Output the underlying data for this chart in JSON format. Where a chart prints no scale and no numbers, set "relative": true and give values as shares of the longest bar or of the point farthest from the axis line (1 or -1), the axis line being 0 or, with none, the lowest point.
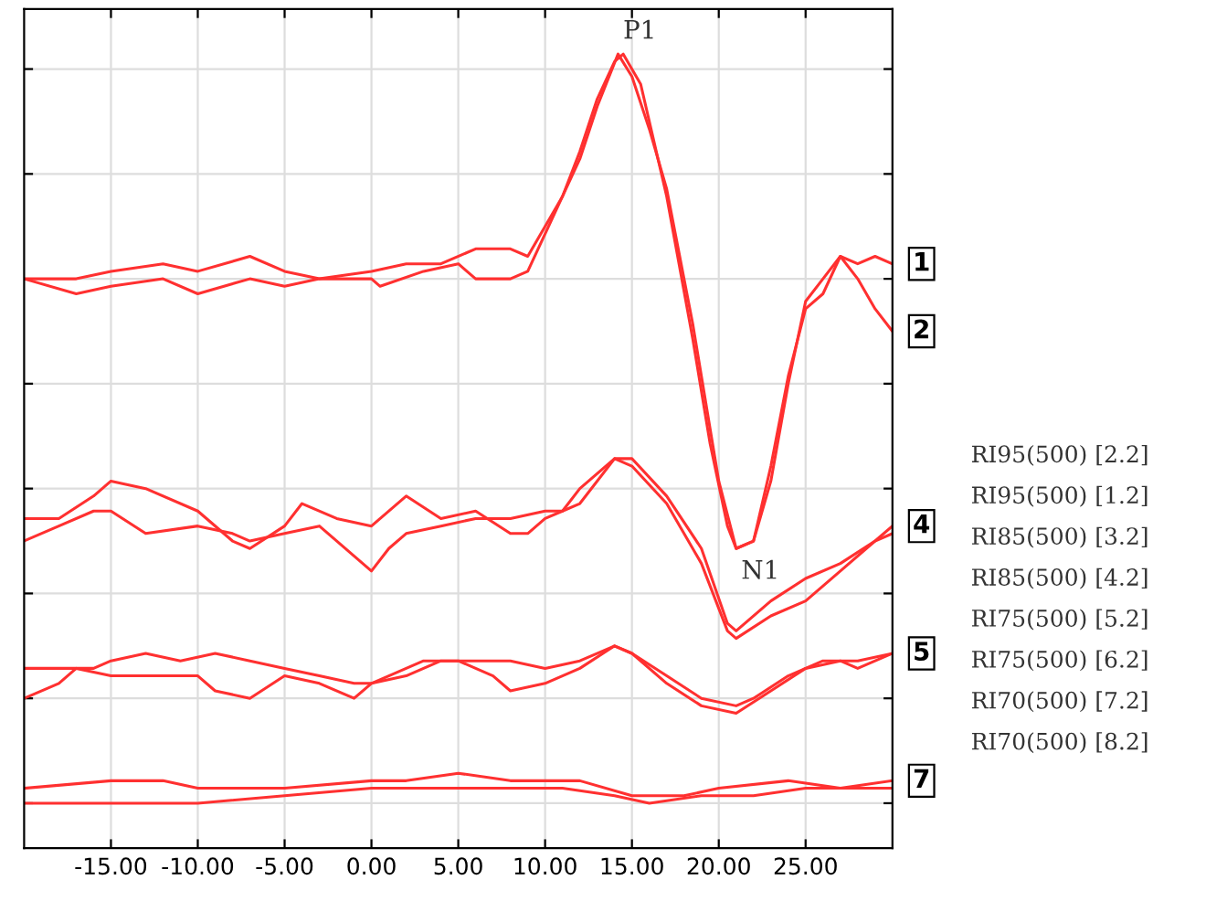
{
  "chart_data": {
    "type": "line",
    "relative": true,
    "grid": true,
    "line_style": "solid",
    "marker": "none",
    "xlim": [
      -20,
      30
    ],
    "xticks": [
      {
        "value": -15,
        "label": "-15.00"
      },
      {
        "value": -10,
        "label": "-10.00"
      },
      {
        "value": -5,
        "label": "-5.00"
      },
      {
        "value": 0,
        "label": "0.00"
      },
      {
        "value": 5,
        "label": "5.00"
      },
      {
        "value": 10,
        "label": "10.00"
      },
      {
        "value": 15,
        "label": "15.00"
      },
      {
        "value": 20,
        "label": "20.00"
      },
      {
        "value": 25,
        "label": "25.00"
      }
    ],
    "tick_labels": "x",
    "series": [
      {
        "color": "#ff3030",
        "x": [
          -20,
          -17,
          -15,
          -12,
          -10,
          -7,
          -5,
          -3,
          0,
          2,
          4,
          6,
          8,
          9,
          10,
          11,
          12,
          13,
          14,
          14.5,
          15.5,
          17,
          18.5,
          19.5,
          20.5,
          21,
          22,
          23,
          24,
          25,
          26,
          27,
          28,
          29,
          30
        ],
        "values": [
          0.7,
          0.7,
          0.71,
          0.72,
          0.71,
          0.73,
          0.71,
          0.7,
          0.71,
          0.72,
          0.72,
          0.74,
          0.74,
          0.73,
          0.77,
          0.81,
          0.87,
          0.94,
          0.99,
          1.0,
          0.96,
          0.81,
          0.62,
          0.48,
          0.37,
          0.34,
          0.35,
          0.43,
          0.56,
          0.67,
          0.7,
          0.73,
          0.72,
          0.73,
          0.72
        ]
      },
      {
        "color": "#ff3030",
        "x": [
          -20,
          -17,
          -15,
          -12,
          -10,
          -7,
          -5,
          -3,
          0,
          0.5,
          3,
          5,
          6,
          7,
          8,
          9,
          10,
          11,
          12,
          13,
          14.2,
          15,
          16,
          17,
          18.5,
          20,
          21,
          22,
          23,
          24,
          25,
          26,
          27,
          28,
          29,
          30
        ],
        "values": [
          0.7,
          0.68,
          0.69,
          0.7,
          0.68,
          0.7,
          0.69,
          0.7,
          0.7,
          0.69,
          0.71,
          0.72,
          0.7,
          0.7,
          0.7,
          0.71,
          0.76,
          0.81,
          0.86,
          0.93,
          1.0,
          0.97,
          0.9,
          0.82,
          0.64,
          0.43,
          0.34,
          0.35,
          0.45,
          0.57,
          0.66,
          0.68,
          0.73,
          0.7,
          0.66,
          0.63
        ]
      },
      {
        "color": "#ff3030",
        "x": [
          -20,
          -18,
          -16,
          -15,
          -13,
          -10,
          -8,
          -7,
          -5,
          -4,
          -2,
          0,
          2,
          4,
          6,
          8,
          9,
          10,
          11,
          12,
          14,
          15,
          17,
          19,
          20.5,
          21,
          23,
          25,
          27,
          29,
          30
        ],
        "values": [
          0.38,
          0.38,
          0.41,
          0.43,
          0.42,
          0.39,
          0.35,
          0.34,
          0.37,
          0.4,
          0.38,
          0.37,
          0.41,
          0.38,
          0.39,
          0.36,
          0.36,
          0.38,
          0.39,
          0.42,
          0.46,
          0.46,
          0.41,
          0.34,
          0.24,
          0.23,
          0.27,
          0.3,
          0.32,
          0.35,
          0.36
        ]
      },
      {
        "color": "#ff3030",
        "x": [
          -20,
          -18,
          -16,
          -15,
          -13,
          -10,
          -8,
          -7,
          -5,
          -3,
          0,
          1,
          2,
          4,
          6,
          8,
          10,
          11,
          12,
          14,
          15,
          17,
          19,
          20.5,
          21,
          23,
          25,
          27,
          29,
          30
        ],
        "values": [
          0.35,
          0.37,
          0.39,
          0.39,
          0.36,
          0.37,
          0.36,
          0.35,
          0.36,
          0.37,
          0.31,
          0.34,
          0.36,
          0.37,
          0.38,
          0.38,
          0.39,
          0.39,
          0.4,
          0.46,
          0.45,
          0.4,
          0.32,
          0.23,
          0.22,
          0.25,
          0.27,
          0.31,
          0.35,
          0.37
        ]
      },
      {
        "color": "#ff3030",
        "x": [
          -20,
          -18,
          -17,
          -15,
          -13,
          -10,
          -9,
          -7,
          -5,
          -3,
          -1,
          0,
          1,
          3,
          5,
          7,
          8,
          10,
          12,
          14,
          15,
          17,
          19,
          21,
          22,
          24,
          26,
          28,
          30
        ],
        "values": [
          0.14,
          0.16,
          0.18,
          0.17,
          0.17,
          0.17,
          0.15,
          0.14,
          0.17,
          0.16,
          0.14,
          0.16,
          0.17,
          0.19,
          0.19,
          0.17,
          0.15,
          0.16,
          0.18,
          0.21,
          0.2,
          0.17,
          0.14,
          0.13,
          0.14,
          0.17,
          0.19,
          0.19,
          0.2
        ]
      },
      {
        "color": "#ff3030",
        "x": [
          -20,
          -18,
          -16,
          -15,
          -13,
          -11,
          -9,
          -7,
          -5,
          -3,
          -1,
          0,
          2,
          4,
          6,
          8,
          10,
          12,
          14,
          15,
          17,
          19,
          21,
          23,
          25,
          27,
          28,
          30
        ],
        "values": [
          0.18,
          0.18,
          0.18,
          0.19,
          0.2,
          0.19,
          0.2,
          0.19,
          0.18,
          0.17,
          0.16,
          0.16,
          0.17,
          0.19,
          0.19,
          0.19,
          0.18,
          0.19,
          0.21,
          0.2,
          0.16,
          0.13,
          0.12,
          0.15,
          0.18,
          0.19,
          0.18,
          0.2
        ]
      },
      {
        "color": "#ff3030",
        "x": [
          -20,
          -15,
          -12,
          -10,
          -5,
          0,
          2,
          5,
          8,
          12,
          15,
          18,
          20,
          24,
          27,
          30
        ],
        "values": [
          0.02,
          0.03,
          0.03,
          0.02,
          0.02,
          0.03,
          0.03,
          0.04,
          0.03,
          0.03,
          0.01,
          0.01,
          0.02,
          0.03,
          0.02,
          0.03
        ]
      },
      {
        "color": "#ff3030",
        "x": [
          -20,
          -15,
          -10,
          -5,
          0,
          2,
          5,
          8,
          11,
          14,
          16,
          19,
          22,
          25,
          27,
          30
        ],
        "values": [
          0.0,
          0.0,
          0.0,
          0.01,
          0.02,
          0.02,
          0.02,
          0.02,
          0.02,
          0.01,
          0.0,
          0.01,
          0.01,
          0.02,
          0.02,
          0.02
        ]
      }
    ],
    "annotations": [
      {
        "text": "P1",
        "x": 14.2,
        "y": 1.0
      },
      {
        "text": "N1",
        "x": 21,
        "y": 0.34
      },
      "RI95(500) [2.2]",
      "RI95(500) [1.2]",
      "RI85(500) [3.2]",
      "RI85(500) [4.2]",
      "RI75(500) [5.2]",
      "RI75(500) [6.2]",
      "RI70(500) [7.2]",
      "RI70(500) [8.2]",
      {
        "text": "1",
        "x": 30,
        "y": 0.72
      },
      {
        "text": "2",
        "x": 30,
        "y": 0.63
      },
      {
        "text": "4",
        "x": 30,
        "y": 0.37
      },
      {
        "text": "5",
        "x": 30,
        "y": 0.2
      },
      {
        "text": "7",
        "x": 30,
        "y": 0.03
      }
    ]
  }
}
